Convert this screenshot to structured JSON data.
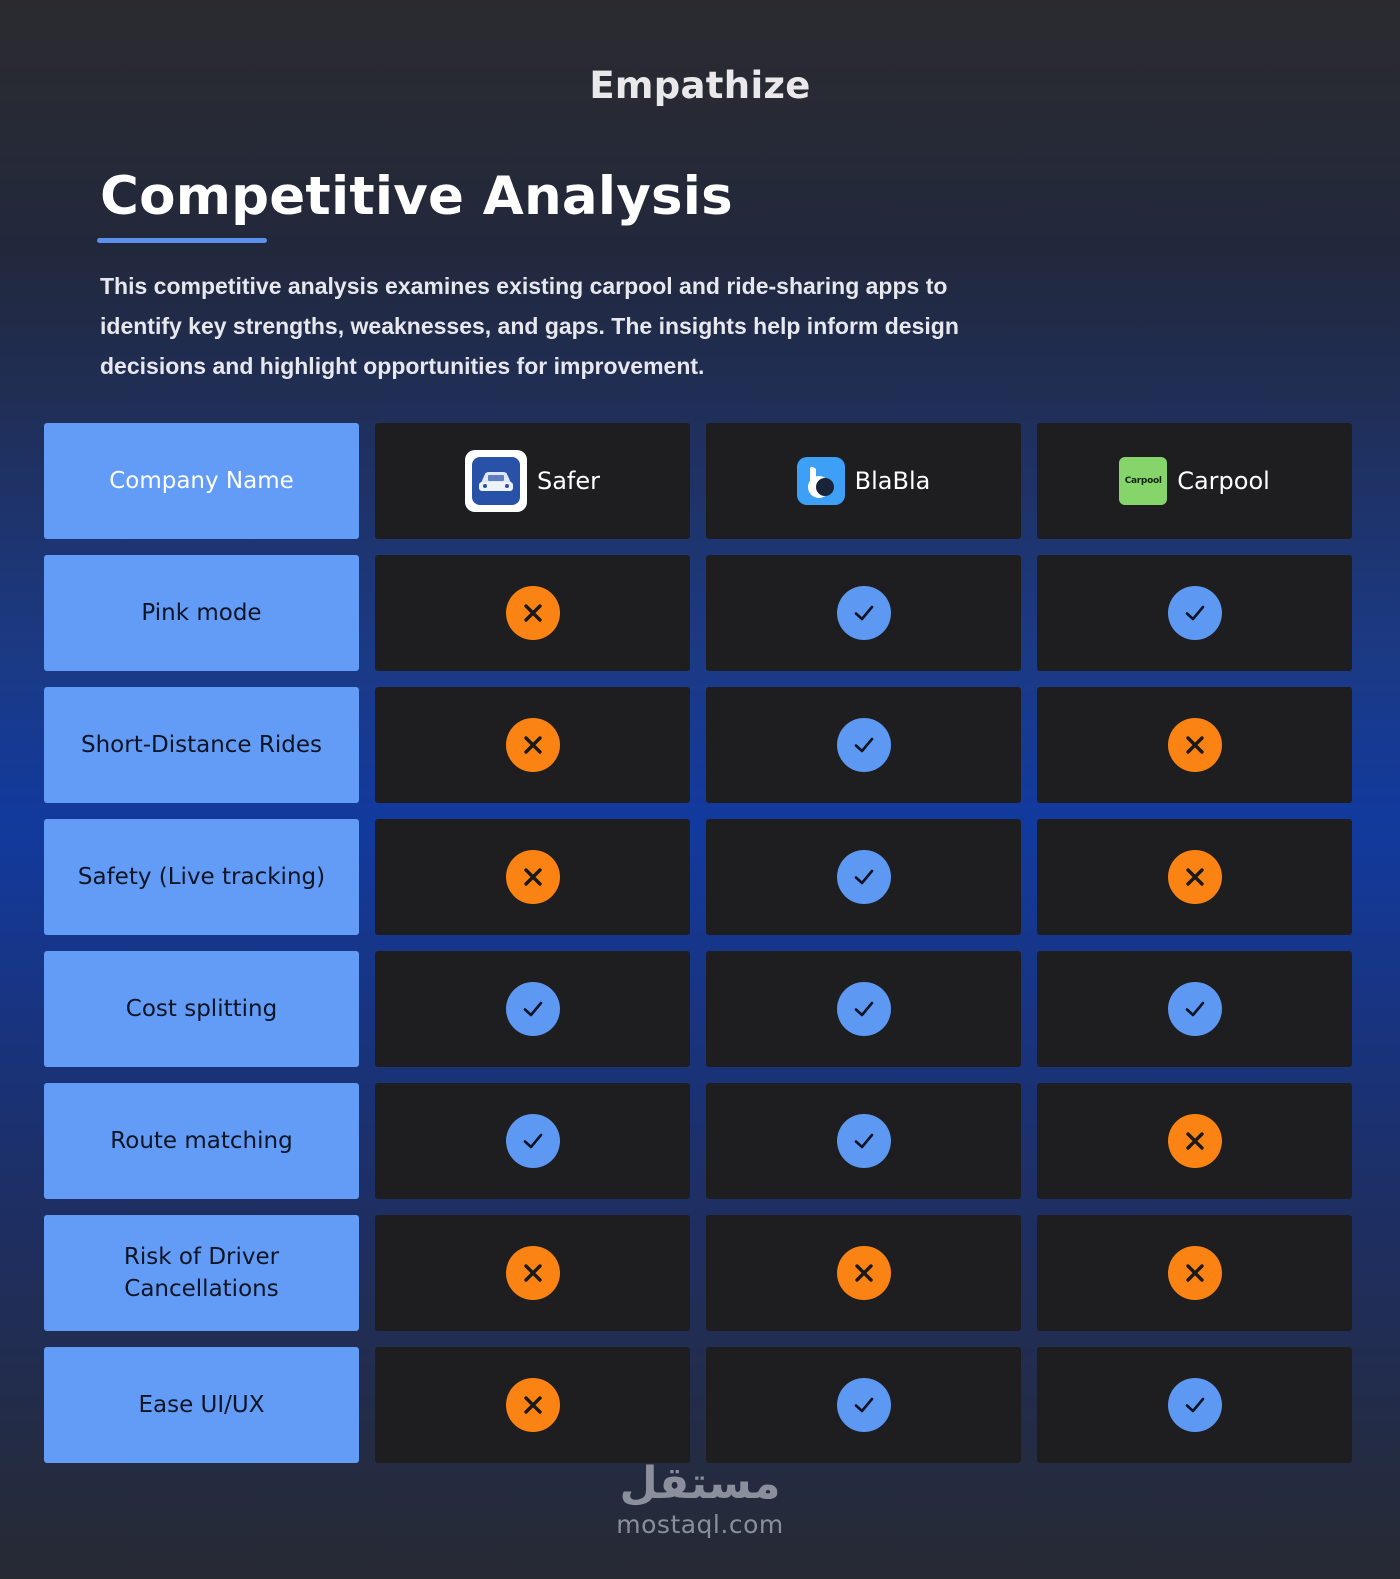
{
  "header": {
    "section": "Empathize",
    "title": "Competitive Analysis",
    "intro": "This competitive analysis examines existing carpool and ride-sharing apps to identify key strengths, weaknesses, and gaps. The insights help inform design decisions and highlight opportunities for improvement."
  },
  "table": {
    "header_label": "Company Name",
    "companies": [
      {
        "name": "Safer",
        "icon": "car-app-icon"
      },
      {
        "name": "BlaBla",
        "icon": "blabla-app-icon"
      },
      {
        "name": "Carpool",
        "icon": "carpool-app-icon",
        "logo_text": "Carpool"
      }
    ],
    "rows": [
      {
        "feature": "Pink mode",
        "values": [
          false,
          true,
          true
        ]
      },
      {
        "feature": "Short-Distance Rides",
        "values": [
          false,
          true,
          false
        ]
      },
      {
        "feature": "Safety (Live tracking)",
        "values": [
          false,
          true,
          false
        ]
      },
      {
        "feature": "Cost splitting",
        "values": [
          true,
          true,
          true
        ]
      },
      {
        "feature": "Route matching",
        "values": [
          true,
          true,
          false
        ]
      },
      {
        "feature": "Risk of Driver Cancellations",
        "values": [
          false,
          false,
          false
        ]
      },
      {
        "feature": "Ease UI/UX",
        "values": [
          false,
          true,
          true
        ]
      }
    ]
  },
  "colors": {
    "yes": "#5d98f2",
    "no": "#fb8313",
    "label_bg": "#629cf6",
    "cell_bg": "#1e1e20"
  },
  "footer": {
    "brand": "مستقل",
    "site": "mostaql.com"
  }
}
